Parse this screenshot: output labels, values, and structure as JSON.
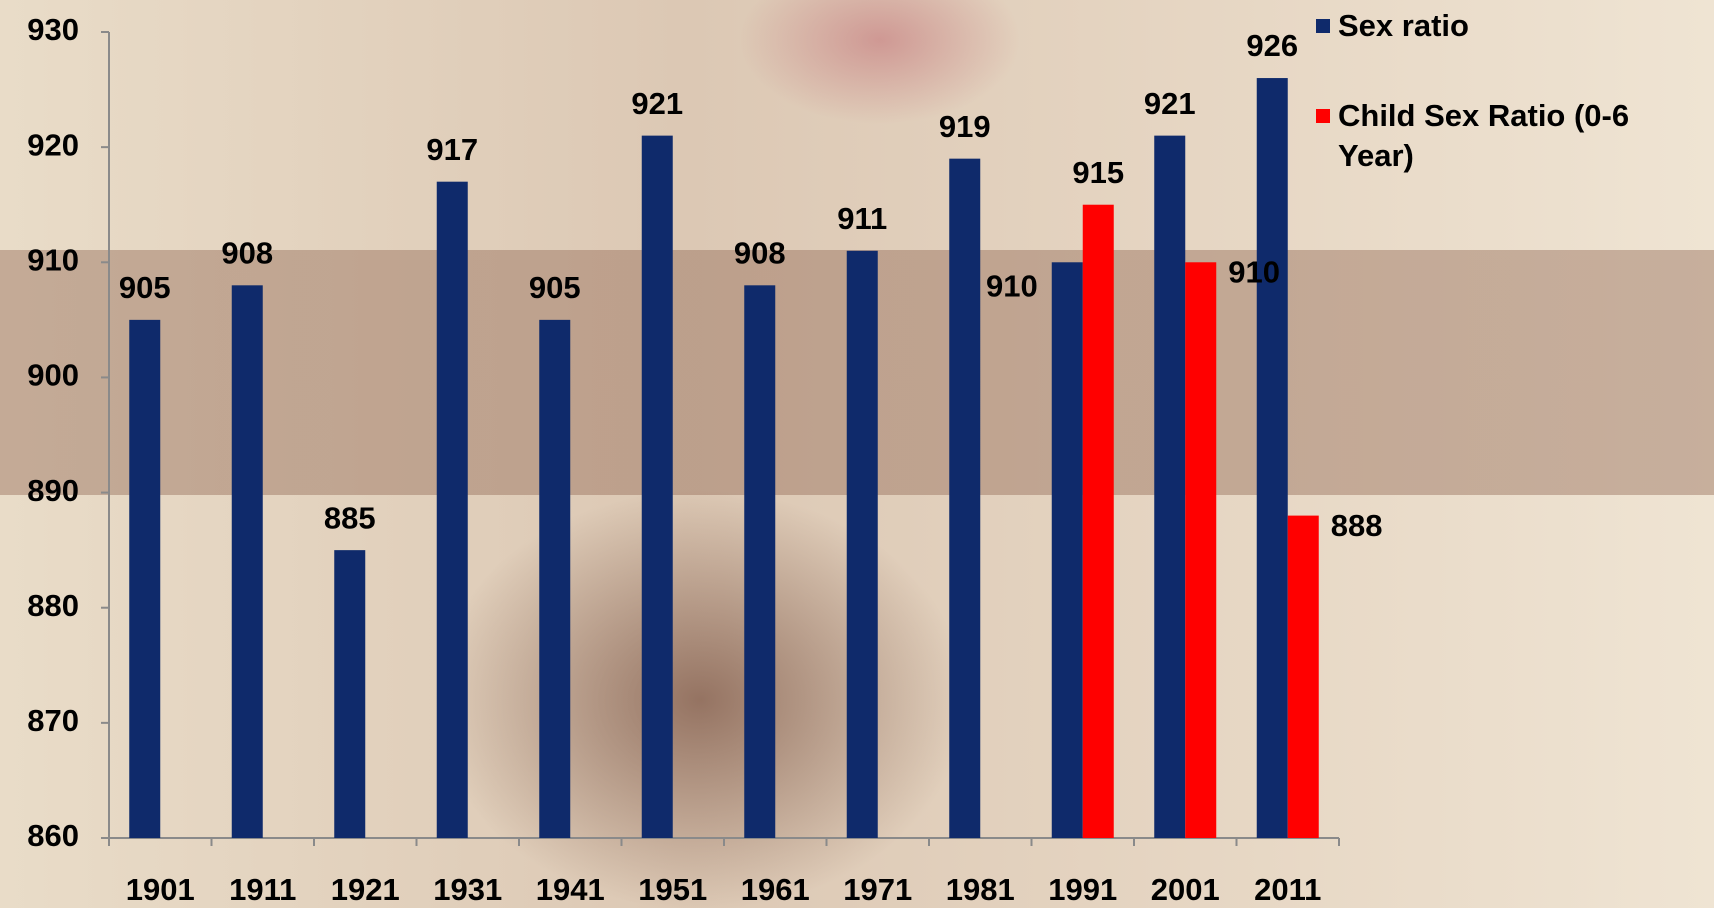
{
  "chart_data": {
    "type": "bar",
    "categories": [
      "1901",
      "1911",
      "1921",
      "1931",
      "1941",
      "1951",
      "1961",
      "1971",
      "1981",
      "1991",
      "2001",
      "2011"
    ],
    "series": [
      {
        "name": "Sex ratio",
        "color": "#0f2a6b",
        "values": [
          905,
          908,
          885,
          917,
          905,
          921,
          908,
          911,
          919,
          910,
          921,
          926
        ]
      },
      {
        "name": "Child Sex Ratio (0-6 Year)",
        "color": "#ff0000",
        "values": [
          null,
          null,
          null,
          null,
          null,
          null,
          null,
          null,
          null,
          915,
          910,
          888
        ]
      }
    ],
    "ylim": [
      860,
      930
    ],
    "yticks": [
      860,
      870,
      880,
      890,
      900,
      910,
      920,
      930
    ],
    "legend": "top-right"
  }
}
